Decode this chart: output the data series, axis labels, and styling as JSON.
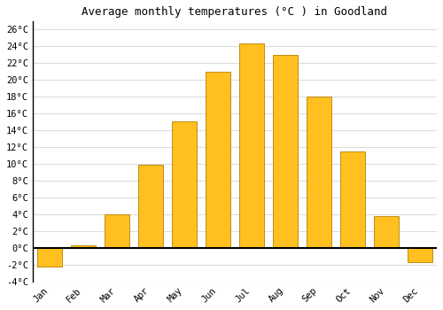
{
  "title": "Average monthly temperatures (°C ) in Goodland",
  "months": [
    "Jan",
    "Feb",
    "Mar",
    "Apr",
    "May",
    "Jun",
    "Jul",
    "Aug",
    "Sep",
    "Oct",
    "Nov",
    "Dec"
  ],
  "values": [
    -2.2,
    0.3,
    4.0,
    9.9,
    15.1,
    21.0,
    24.4,
    23.0,
    18.0,
    11.5,
    3.8,
    -1.7
  ],
  "bar_color": "#FFC020",
  "bar_edge_color": "#B88000",
  "ylim": [
    -4,
    27
  ],
  "yticks": [
    -4,
    -2,
    0,
    2,
    4,
    6,
    8,
    10,
    12,
    14,
    16,
    18,
    20,
    22,
    24,
    26
  ],
  "ytick_labels": [
    "-4°C",
    "-2°C",
    "0°C",
    "2°C",
    "4°C",
    "6°C",
    "8°C",
    "10°C",
    "12°C",
    "14°C",
    "16°C",
    "18°C",
    "20°C",
    "22°C",
    "24°C",
    "26°C"
  ],
  "grid_color": "#dddddd",
  "background_color": "#ffffff",
  "title_fontsize": 9,
  "tick_fontsize": 7.5,
  "bar_width": 0.75
}
